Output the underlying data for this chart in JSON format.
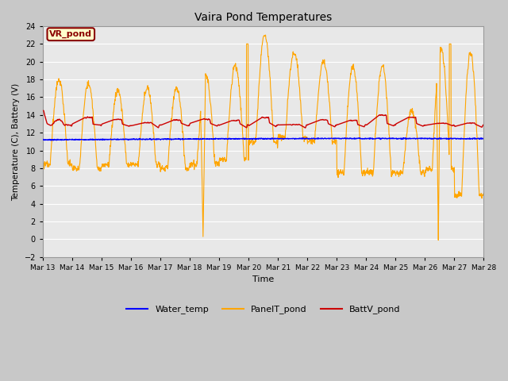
{
  "title": "Vaira Pond Temperatures",
  "xlabel": "Time",
  "ylabel": "Temperature (C), Battery (V)",
  "ylim": [
    -2,
    24
  ],
  "yticks": [
    -2,
    0,
    2,
    4,
    6,
    8,
    10,
    12,
    14,
    16,
    18,
    20,
    22,
    24
  ],
  "xtick_labels": [
    "Mar 13",
    "Mar 14",
    "Mar 15",
    "Mar 16",
    "Mar 17",
    "Mar 18",
    "Mar 19",
    "Mar 20",
    "Mar 21",
    "Mar 22",
    "Mar 23",
    "Mar 24",
    "Mar 25",
    "Mar 26",
    "Mar 27",
    "Mar 28"
  ],
  "water_temp_color": "#0000ff",
  "panel_temp_color": "#FFA500",
  "batt_color": "#cc0000",
  "plot_bg_color": "#e8e8e8",
  "fig_bg_color": "#c8c8c8",
  "grid_color": "#ffffff",
  "annotation_text": "VR_pond",
  "annotation_bg": "#ffffcc",
  "annotation_border": "#8B0000",
  "legend_labels": [
    "Water_temp",
    "PanelT_pond",
    "BattV_pond"
  ]
}
